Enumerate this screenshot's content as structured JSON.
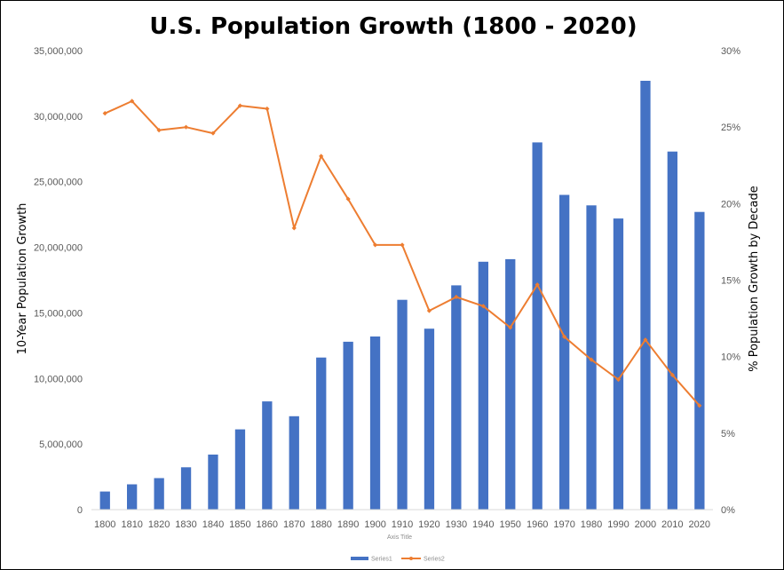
{
  "chart_data": {
    "type": "bar+line",
    "title": "U.S. Population Growth (1800 - 2020)",
    "xlabel": "Axis Title",
    "ylabel": "10-Year Population Growth",
    "y2label": "% Population Growth by Decade",
    "categories": [
      "1800",
      "1810",
      "1820",
      "1830",
      "1840",
      "1850",
      "1860",
      "1870",
      "1880",
      "1890",
      "1900",
      "1910",
      "1920",
      "1930",
      "1940",
      "1950",
      "1960",
      "1970",
      "1980",
      "1990",
      "2000",
      "2010",
      "2020"
    ],
    "ylim": [
      0,
      35000000
    ],
    "y_ticks": [
      0,
      5000000,
      10000000,
      15000000,
      20000000,
      25000000,
      30000000,
      35000000
    ],
    "y_tick_labels": [
      "0",
      "5,000,000",
      "10,000,000",
      "15,000,000",
      "20,000,000",
      "25,000,000",
      "30,000,000",
      "35,000,000"
    ],
    "y2lim": [
      0,
      30
    ],
    "y2_ticks": [
      0,
      5,
      10,
      15,
      20,
      25,
      30
    ],
    "y2_tick_labels": [
      "0%",
      "5%",
      "10%",
      "15%",
      "20%",
      "25%",
      "30%"
    ],
    "grid": false,
    "legend_position": "bottom",
    "series": [
      {
        "name": "Series1",
        "type": "bar",
        "axis": "left",
        "color": "#4472C4",
        "values": [
          1380000,
          1930000,
          2400000,
          3230000,
          4200000,
          6120000,
          8250000,
          7120000,
          11600000,
          12800000,
          13200000,
          16000000,
          13800000,
          17100000,
          18900000,
          19100000,
          28000000,
          24000000,
          23200000,
          22200000,
          32700000,
          27300000,
          22700000
        ]
      },
      {
        "name": "Series2",
        "type": "line",
        "axis": "right",
        "color": "#ED7D31",
        "values": [
          25.9,
          26.7,
          24.8,
          25.0,
          24.6,
          26.4,
          26.2,
          18.4,
          23.1,
          20.3,
          17.3,
          17.3,
          13.0,
          13.9,
          13.3,
          11.9,
          14.7,
          11.3,
          9.8,
          8.5,
          11.1,
          8.8,
          6.8
        ]
      }
    ]
  }
}
